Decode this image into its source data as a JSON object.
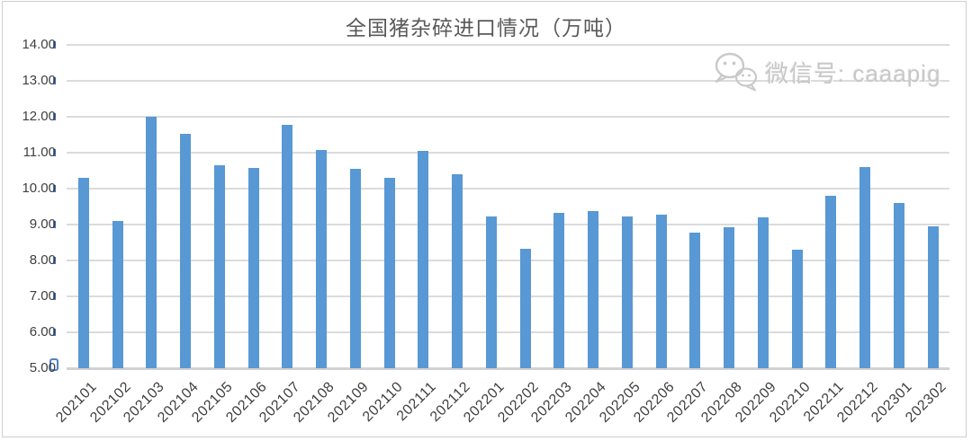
{
  "title": "全国猪杂碎进口情况（万吨）",
  "watermark": {
    "icon": "wechat-icon",
    "label": "微信号: caaapig",
    "color": "#C8C8C8"
  },
  "chart_data": {
    "type": "bar",
    "title": "全国猪杂碎进口情况（万吨）",
    "unit": "万吨",
    "categories": [
      "202101",
      "202102",
      "202103",
      "202104",
      "202105",
      "202106",
      "202107",
      "202108",
      "202109",
      "202110",
      "202111",
      "202112",
      "202201",
      "202202",
      "202203",
      "202204",
      "202205",
      "202206",
      "202207",
      "202208",
      "202209",
      "202210",
      "202211",
      "202212",
      "202301",
      "202302"
    ],
    "values": [
      10.31,
      9.1,
      12.0,
      11.52,
      10.64,
      10.57,
      11.77,
      11.08,
      10.56,
      10.3,
      11.06,
      10.41,
      9.23,
      8.33,
      9.33,
      9.38,
      9.23,
      9.28,
      8.78,
      8.92,
      9.21,
      8.31,
      9.79,
      10.61,
      9.61,
      8.96
    ],
    "ylim": [
      5.0,
      14.0
    ],
    "ytick_step": 1.0,
    "ytick_labels": [
      "5.00",
      "6.00",
      "7.00",
      "8.00",
      "9.00",
      "10.00",
      "11.00",
      "12.00",
      "13.00",
      "14.00"
    ],
    "xlabel": "",
    "ylabel": "",
    "grid": true,
    "legend": false,
    "bar_color": "#5898D4",
    "gridline_color": "#DBDBDB",
    "axis_baseline_color": "#D2D2D2",
    "tick_color": "#4472C4",
    "label_color": "#404040",
    "title_color": "#595959"
  }
}
